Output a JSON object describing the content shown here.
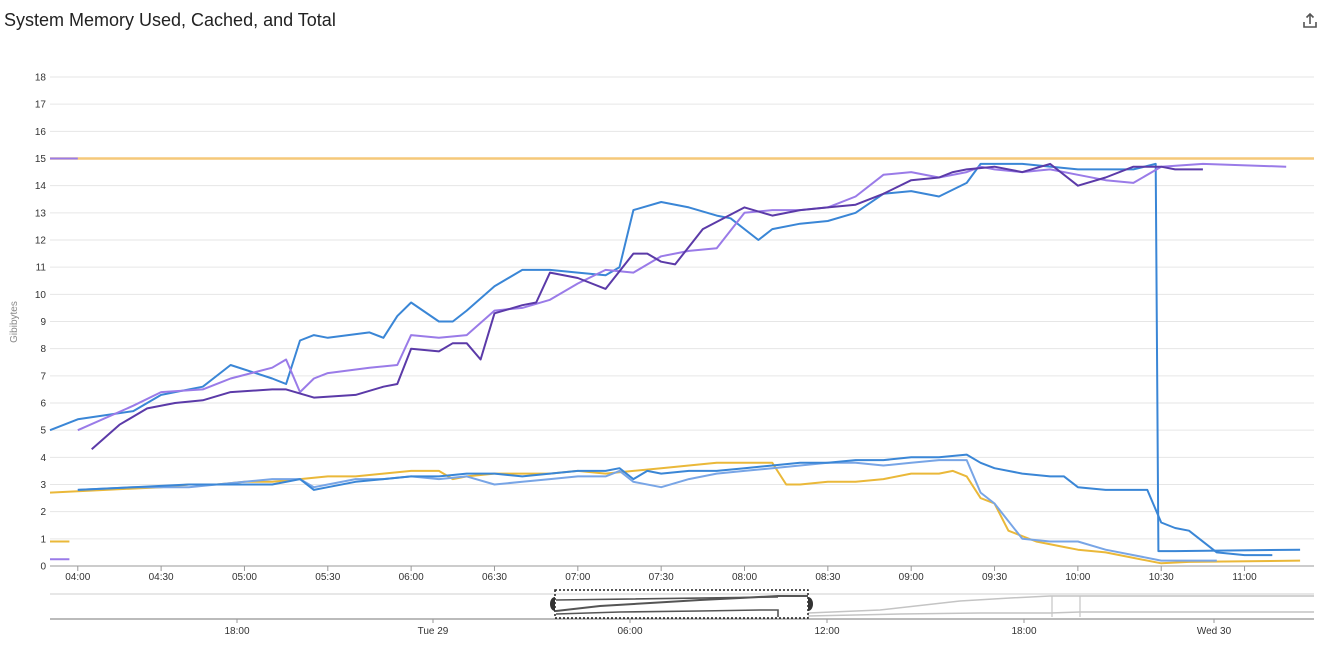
{
  "header": {
    "title": "System Memory Used, Cached, and Total",
    "export_icon": "share-export-icon"
  },
  "colors": {
    "total": "#f5c97a",
    "yellow": "#eab839",
    "blue": "#3a86d6",
    "light_blue": "#78a5e6",
    "purple": "#9a7be8",
    "dark_purple": "#5b3aa8",
    "grid": "#e6e6e6",
    "navigator_dark": "#555555",
    "navigator_light": "#c4c4c4"
  },
  "chart_data": {
    "type": "line",
    "title": "System Memory Used, Cached, and Total",
    "xlabel": "",
    "ylabel": "Gibibytes",
    "ylim": [
      0,
      18
    ],
    "grid": true,
    "y_ticks": [
      "0",
      "1",
      "2",
      "3",
      "4",
      "5",
      "6",
      "7",
      "8",
      "9",
      "10",
      "11",
      "12",
      "13",
      "14",
      "15",
      "16",
      "17",
      "18"
    ],
    "x_ticks": [
      "04:00",
      "04:30",
      "05:00",
      "05:30",
      "06:00",
      "06:30",
      "07:00",
      "07:30",
      "08:00",
      "08:30",
      "09:00",
      "09:30",
      "10:00",
      "10:30",
      "11:00"
    ],
    "x_domain": [
      "03:50",
      "11:25"
    ],
    "series": [
      {
        "color_key": "total",
        "x": [
          "03:50",
          "11:25"
        ],
        "y": [
          15.0,
          15.0
        ]
      },
      {
        "color_key": "purple",
        "x": [
          "03:50",
          "04:00"
        ],
        "y": [
          15.0,
          15.0
        ]
      },
      {
        "color_key": "yellow",
        "x": [
          "03:50",
          "03:57"
        ],
        "y": [
          0.9,
          0.9
        ]
      },
      {
        "color_key": "purple",
        "x": [
          "03:50",
          "03:57"
        ],
        "y": [
          0.25,
          0.25
        ]
      },
      {
        "color_key": "blue",
        "x": [
          "03:50",
          "04:00",
          "04:20",
          "04:30",
          "04:45",
          "04:55",
          "05:10",
          "05:15",
          "05:20",
          "05:25",
          "05:30",
          "05:45",
          "05:50",
          "05:55",
          "06:00",
          "06:10",
          "06:15",
          "06:20",
          "06:30",
          "06:40",
          "06:50",
          "07:00",
          "07:10",
          "07:15",
          "07:20",
          "07:30",
          "07:40",
          "07:50",
          "07:55",
          "08:05",
          "08:10",
          "08:20",
          "08:30",
          "08:40",
          "08:50",
          "09:00",
          "09:10",
          "09:20",
          "09:25",
          "09:30",
          "09:40",
          "10:00",
          "10:10",
          "10:20",
          "10:28",
          "10:29",
          "10:35",
          "11:20"
        ],
        "y": [
          5.0,
          5.4,
          5.7,
          6.3,
          6.6,
          7.4,
          6.9,
          6.7,
          8.3,
          8.5,
          8.4,
          8.6,
          8.4,
          9.2,
          9.7,
          9.0,
          9.0,
          9.4,
          10.3,
          10.9,
          10.9,
          10.8,
          10.7,
          11.0,
          13.1,
          13.4,
          13.2,
          12.9,
          12.8,
          12.0,
          12.4,
          12.6,
          12.7,
          13.0,
          13.7,
          13.8,
          13.6,
          14.1,
          14.8,
          14.8,
          14.8,
          14.6,
          14.6,
          14.6,
          14.8,
          0.55,
          0.55,
          0.6
        ]
      },
      {
        "color_key": "purple",
        "x": [
          "04:00",
          "04:20",
          "04:30",
          "04:45",
          "04:55",
          "05:10",
          "05:15",
          "05:20",
          "05:25",
          "05:30",
          "05:45",
          "05:55",
          "06:00",
          "06:10",
          "06:20",
          "06:30",
          "06:40",
          "06:50",
          "07:00",
          "07:10",
          "07:20",
          "07:30",
          "07:40",
          "07:50",
          "08:00",
          "08:10",
          "08:20",
          "08:30",
          "08:40",
          "08:50",
          "09:00",
          "09:10",
          "09:20",
          "09:25",
          "09:30",
          "09:40",
          "09:50",
          "10:00",
          "10:10",
          "10:20",
          "10:30",
          "10:45",
          "11:15"
        ],
        "y": [
          5.0,
          5.9,
          6.4,
          6.5,
          6.9,
          7.3,
          7.6,
          6.4,
          6.9,
          7.1,
          7.3,
          7.4,
          8.5,
          8.4,
          8.5,
          9.4,
          9.5,
          9.8,
          10.4,
          10.9,
          10.8,
          11.4,
          11.6,
          11.7,
          13.0,
          13.1,
          13.1,
          13.2,
          13.6,
          14.4,
          14.5,
          14.3,
          14.5,
          14.7,
          14.6,
          14.5,
          14.6,
          14.4,
          14.2,
          14.1,
          14.7,
          14.8,
          14.7
        ]
      },
      {
        "color_key": "dark_purple",
        "x": [
          "04:05",
          "04:15",
          "04:25",
          "04:35",
          "04:45",
          "04:55",
          "05:10",
          "05:15",
          "05:25",
          "05:40",
          "05:50",
          "05:55",
          "06:00",
          "06:10",
          "06:15",
          "06:20",
          "06:25",
          "06:30",
          "06:40",
          "06:45",
          "06:50",
          "07:00",
          "07:10",
          "07:20",
          "07:25",
          "07:30",
          "07:35",
          "07:45",
          "08:00",
          "08:10",
          "08:20",
          "08:30",
          "08:40",
          "08:50",
          "09:00",
          "09:10",
          "09:15",
          "09:20",
          "09:30",
          "09:40",
          "09:50",
          "10:00",
          "10:10",
          "10:20",
          "10:30",
          "10:35",
          "10:45"
        ],
        "y": [
          4.3,
          5.2,
          5.8,
          6.0,
          6.1,
          6.4,
          6.5,
          6.5,
          6.2,
          6.3,
          6.6,
          6.7,
          8.0,
          7.9,
          8.2,
          8.2,
          7.6,
          9.3,
          9.6,
          9.7,
          10.8,
          10.6,
          10.2,
          11.5,
          11.5,
          11.2,
          11.1,
          12.4,
          13.2,
          12.9,
          13.1,
          13.2,
          13.3,
          13.7,
          14.2,
          14.3,
          14.5,
          14.6,
          14.7,
          14.5,
          14.8,
          14.0,
          14.3,
          14.7,
          14.7,
          14.6,
          14.6
        ]
      },
      {
        "color_key": "yellow",
        "x": [
          "03:50",
          "04:10",
          "04:30",
          "04:40",
          "04:50",
          "05:00",
          "05:10",
          "05:20",
          "05:30",
          "05:40",
          "05:50",
          "06:00",
          "06:10",
          "06:15",
          "06:20",
          "06:30",
          "06:40",
          "06:50",
          "07:00",
          "07:10",
          "07:20",
          "07:30",
          "07:40",
          "07:50",
          "08:00",
          "08:10",
          "08:15",
          "08:20",
          "08:30",
          "08:40",
          "08:50",
          "09:00",
          "09:10",
          "09:15",
          "09:20",
          "09:25",
          "09:30",
          "09:35",
          "09:45",
          "09:55",
          "10:00",
          "10:10",
          "10:20",
          "10:30",
          "10:40",
          "11:20"
        ],
        "y": [
          2.7,
          2.8,
          2.9,
          3.0,
          3.0,
          3.1,
          3.1,
          3.2,
          3.3,
          3.3,
          3.4,
          3.5,
          3.5,
          3.2,
          3.3,
          3.4,
          3.4,
          3.4,
          3.5,
          3.4,
          3.5,
          3.6,
          3.7,
          3.8,
          3.8,
          3.8,
          3.0,
          3.0,
          3.1,
          3.1,
          3.2,
          3.4,
          3.4,
          3.5,
          3.3,
          2.5,
          2.3,
          1.3,
          0.9,
          0.7,
          0.6,
          0.5,
          0.3,
          0.1,
          0.15,
          0.2
        ]
      },
      {
        "color_key": "light_blue",
        "x": [
          "04:00",
          "04:20",
          "04:40",
          "05:00",
          "05:10",
          "05:20",
          "05:25",
          "05:30",
          "05:40",
          "05:50",
          "06:00",
          "06:10",
          "06:20",
          "06:30",
          "06:40",
          "06:50",
          "07:00",
          "07:10",
          "07:15",
          "07:20",
          "07:30",
          "07:40",
          "07:50",
          "08:00",
          "08:10",
          "08:20",
          "08:30",
          "08:40",
          "08:50",
          "09:00",
          "09:10",
          "09:20",
          "09:25",
          "09:30",
          "09:40",
          "09:50",
          "10:00",
          "10:10",
          "10:20",
          "10:30",
          "10:40",
          "10:50"
        ],
        "y": [
          2.8,
          2.9,
          2.9,
          3.1,
          3.2,
          3.2,
          2.9,
          3.0,
          3.2,
          3.2,
          3.3,
          3.2,
          3.3,
          3.0,
          3.1,
          3.2,
          3.3,
          3.3,
          3.5,
          3.1,
          2.9,
          3.2,
          3.4,
          3.5,
          3.6,
          3.7,
          3.8,
          3.8,
          3.7,
          3.8,
          3.9,
          3.9,
          2.7,
          2.3,
          1.0,
          0.9,
          0.9,
          0.6,
          0.4,
          0.2,
          0.2,
          0.2
        ]
      },
      {
        "color_key": "blue",
        "x": [
          "04:00",
          "04:20",
          "04:40",
          "05:00",
          "05:10",
          "05:20",
          "05:25",
          "05:30",
          "05:40",
          "05:50",
          "06:00",
          "06:10",
          "06:20",
          "06:30",
          "06:40",
          "06:50",
          "07:00",
          "07:10",
          "07:15",
          "07:20",
          "07:25",
          "07:30",
          "07:40",
          "07:50",
          "08:00",
          "08:10",
          "08:20",
          "08:30",
          "08:40",
          "08:50",
          "09:00",
          "09:10",
          "09:20",
          "09:25",
          "09:30",
          "09:40",
          "09:50",
          "09:55",
          "10:00",
          "10:10",
          "10:20",
          "10:25",
          "10:30",
          "10:35",
          "10:40",
          "10:50",
          "11:00",
          "11:10"
        ],
        "y": [
          2.8,
          2.9,
          3.0,
          3.0,
          3.0,
          3.2,
          2.8,
          2.9,
          3.1,
          3.2,
          3.3,
          3.3,
          3.4,
          3.4,
          3.3,
          3.4,
          3.5,
          3.5,
          3.6,
          3.2,
          3.5,
          3.4,
          3.5,
          3.5,
          3.6,
          3.7,
          3.8,
          3.8,
          3.9,
          3.9,
          4.0,
          4.0,
          4.1,
          3.8,
          3.6,
          3.4,
          3.3,
          3.3,
          2.9,
          2.8,
          2.8,
          2.8,
          1.6,
          1.4,
          1.3,
          0.5,
          0.4,
          0.4
        ]
      }
    ],
    "navigator": {
      "x_ticks": [
        "18:00",
        "Tue 29",
        "06:00",
        "12:00",
        "18:00",
        "Wed 30"
      ]
    }
  }
}
